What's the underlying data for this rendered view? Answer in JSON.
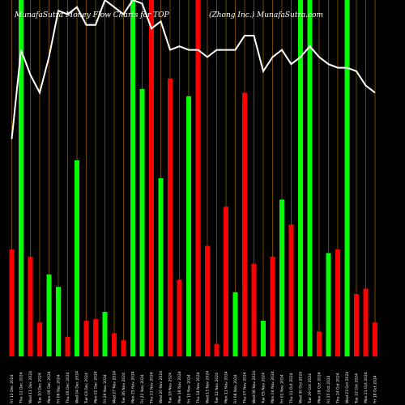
{
  "header": {
    "left_text": "MunafaSutra  Money Flow  Charts for TOP",
    "right_text": "(Zhong Inc.) MunafaSutra.com"
  },
  "chart_data": {
    "type": "bar",
    "title": "",
    "xlabel": "",
    "ylabel": "",
    "ylim": [
      0,
      100
    ],
    "grid": true,
    "legend": "none",
    "colors": {
      "background": "#000000",
      "up": "#00ff00",
      "down": "#ff0000",
      "grid": "#8a5a00",
      "price_line": "#ffffff"
    },
    "categories": [
      "Fri 13 Dec 2024",
      "Thu 12 Dec 2024",
      "Wed 11 Dec 2024",
      "Tue 10 Dec 2024",
      "Mon 09 Dec 2024",
      "Fri 06 Dec 2024",
      "Thu 05 Dec 2024",
      "Wed 04 Dec 2024",
      "Tue 03 Dec 2024",
      "Mon 02 Dec 2024",
      "Fri 29 Nov 2024",
      "Wed 27 Nov 2024",
      "Tue 26 Nov 2024",
      "Mon 25 Nov 2024",
      "Fri 22 Nov 2024",
      "Thu 21 Nov 2024",
      "Wed 20 Nov 2024",
      "Tue 19 Nov 2024",
      "Mon 18 Nov 2024",
      "Fri 15 Nov 2024",
      "Thu 14 Nov 2024",
      "Wed 13 Nov 2024",
      "Tue 12 Nov 2024",
      "Mon 11 Nov 2024",
      "Fri 08 Nov 2024",
      "Thu 07 Nov 2024",
      "Wed 06 Nov 2024",
      "Tue 05 Nov 2024",
      "Mon 04 Nov 2024",
      "Fri 01 Nov 2024",
      "Thu 31 Oct 2024",
      "Wed 30 Oct 2024",
      "Tue 29 Oct 2024",
      "Mon 28 Oct 2024",
      "Fri 25 Oct 2024",
      "Thu 24 Oct 2024",
      "Wed 23 Oct 2024",
      "Tue 22 Oct 2024",
      "Mon 21 Oct 2024",
      "Fri 18 Oct 2024"
    ],
    "series": [
      {
        "values": [
          30,
          100,
          28,
          9.5,
          23,
          19.5,
          5.5,
          55,
          10,
          10.5,
          12.5,
          6.5,
          4.5,
          100,
          75,
          100,
          50,
          78,
          21.5,
          73,
          100,
          31,
          3.5,
          42,
          18,
          74,
          26,
          10,
          28,
          44,
          37,
          100,
          100,
          7,
          29,
          30,
          100,
          17.5,
          19,
          9.5
        ],
        "directions": [
          "down",
          "up",
          "down",
          "down",
          "up",
          "up",
          "down",
          "up",
          "down",
          "down",
          "up",
          "down",
          "down",
          "up",
          "up",
          "down",
          "up",
          "down",
          "down",
          "up",
          "down",
          "down",
          "down",
          "down",
          "up",
          "down",
          "down",
          "up",
          "down",
          "up",
          "down",
          "up",
          "up",
          "down",
          "up",
          "down",
          "up",
          "down",
          "down",
          "down"
        ]
      },
      {
        "values": [
          61,
          86,
          79,
          74,
          84,
          97,
          96,
          98,
          93,
          93,
          100,
          98,
          96,
          100,
          99,
          92,
          94,
          86,
          87,
          86,
          86,
          84,
          86,
          86,
          86,
          90,
          90,
          80,
          84,
          86,
          82,
          84,
          87,
          84,
          82,
          81,
          81,
          80,
          76,
          74
        ]
      }
    ]
  }
}
